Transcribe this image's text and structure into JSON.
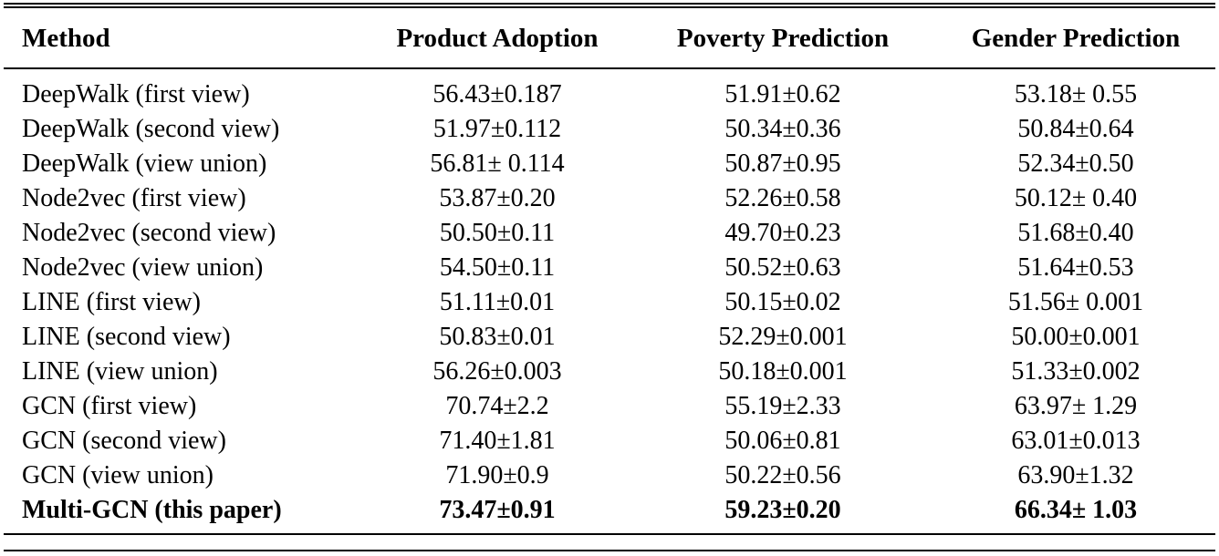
{
  "table": {
    "headers": [
      "Method",
      "Product Adoption",
      "Poverty Prediction",
      "Gender Prediction"
    ],
    "rows": [
      {
        "method": "DeepWalk (first view)",
        "product": "56.43±0.187",
        "poverty": "51.91±0.62",
        "gender": "53.18± 0.55"
      },
      {
        "method": "DeepWalk (second view)",
        "product": "51.97±0.112",
        "poverty": "50.34±0.36",
        "gender": "50.84±0.64"
      },
      {
        "method": "DeepWalk (view union)",
        "product": "56.81± 0.114",
        "poverty": "50.87±0.95",
        "gender": "52.34±0.50"
      },
      {
        "method": "Node2vec (first view)",
        "product": "53.87±0.20",
        "poverty": "52.26±0.58",
        "gender": "50.12± 0.40"
      },
      {
        "method": "Node2vec (second view)",
        "product": "50.50±0.11",
        "poverty": "49.70±0.23",
        "gender": "51.68±0.40"
      },
      {
        "method": "Node2vec (view union)",
        "product": "54.50±0.11",
        "poverty": "50.52±0.63",
        "gender": "51.64±0.53"
      },
      {
        "method": "LINE (first view)",
        "product": "51.11±0.01",
        "poverty": "50.15±0.02",
        "gender": "51.56± 0.001"
      },
      {
        "method": "LINE (second view)",
        "product": "50.83±0.01",
        "poverty": "52.29±0.001",
        "gender": "50.00±0.001"
      },
      {
        "method": "LINE (view union)",
        "product": "56.26±0.003",
        "poverty": "50.18±0.001",
        "gender": "51.33±0.002"
      },
      {
        "method": "GCN (first view)",
        "product": "70.74±2.2",
        "poverty": "55.19±2.33",
        "gender": "63.97± 1.29"
      },
      {
        "method": "GCN (second view)",
        "product": "71.40±1.81",
        "poverty": "50.06±0.81",
        "gender": "63.01±0.013"
      },
      {
        "method": "GCN (view union)",
        "product": "71.90±0.9",
        "poverty": "50.22±0.56",
        "gender": "63.90±1.32"
      },
      {
        "method": "Multi-GCN (this paper)",
        "product": "73.47±0.91",
        "poverty": "59.23±0.20",
        "gender": "66.34± 1.03"
      }
    ]
  }
}
